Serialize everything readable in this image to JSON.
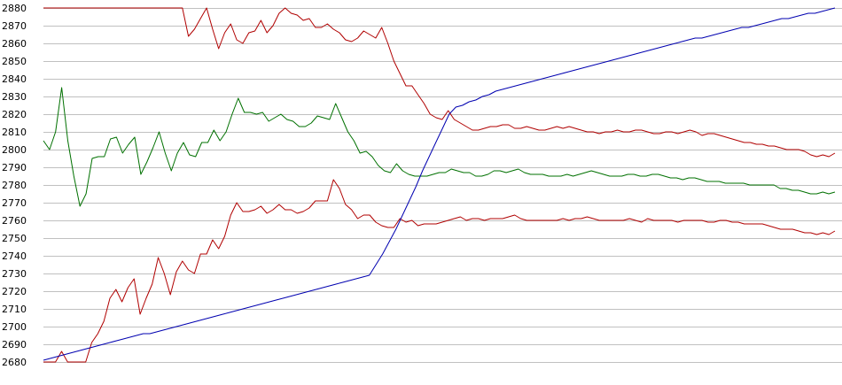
{
  "chart_data": {
    "type": "line",
    "title": "",
    "xlabel": "",
    "ylabel": "",
    "ylim": [
      2680,
      2880
    ],
    "y_ticks": [
      2680,
      2690,
      2700,
      2710,
      2720,
      2730,
      2740,
      2750,
      2760,
      2770,
      2780,
      2790,
      2800,
      2810,
      2820,
      2830,
      2840,
      2850,
      2860,
      2870,
      2880
    ],
    "grid": true,
    "legend": "none",
    "colors": {
      "grid": "#c0c0c0",
      "upper_band": "#b00000",
      "average": "#007000",
      "lower_band": "#b00000",
      "rising": "#0000b0"
    },
    "series": [
      {
        "key": "upper_band",
        "values": [
          2880,
          2880,
          2880,
          2880,
          2880,
          2880,
          2880,
          2880,
          2880,
          2880,
          2880,
          2880,
          2880,
          2880,
          2880,
          2880,
          2880,
          2880,
          2880,
          2880,
          2880,
          2880,
          2880,
          2880,
          2864,
          2868,
          2874,
          2880,
          2868,
          2857,
          2866,
          2871,
          2862,
          2860,
          2866,
          2867,
          2873,
          2866,
          2870,
          2877,
          2880,
          2877,
          2876,
          2873,
          2874,
          2869,
          2869,
          2871,
          2868,
          2866,
          2862,
          2861,
          2863,
          2867,
          2865,
          2863,
          2869,
          2860,
          2850,
          2843,
          2836,
          2836,
          2831,
          2826,
          2820,
          2818,
          2817,
          2822,
          2817,
          2815,
          2813,
          2811,
          2811,
          2812,
          2813,
          2813,
          2814,
          2814,
          2812,
          2812,
          2813,
          2812,
          2811,
          2811,
          2812,
          2813,
          2812,
          2813,
          2812,
          2811,
          2810,
          2810,
          2809,
          2810,
          2810,
          2811,
          2810,
          2810,
          2811,
          2811,
          2810,
          2809,
          2809,
          2810,
          2810,
          2809,
          2810,
          2811,
          2810,
          2808,
          2809,
          2809,
          2808,
          2807,
          2806,
          2805,
          2804,
          2804,
          2803,
          2803,
          2802,
          2802,
          2801,
          2800,
          2800,
          2800,
          2799,
          2797,
          2796,
          2797,
          2796,
          2798
        ]
      },
      {
        "key": "average",
        "values": [
          2805,
          2800,
          2810,
          2835,
          2805,
          2785,
          2768,
          2775,
          2795,
          2796,
          2796,
          2806,
          2807,
          2798,
          2803,
          2807,
          2786,
          2793,
          2801,
          2810,
          2798,
          2788,
          2798,
          2804,
          2797,
          2796,
          2804,
          2804,
          2811,
          2805,
          2810,
          2820,
          2829,
          2821,
          2821,
          2820,
          2821,
          2816,
          2818,
          2820,
          2817,
          2816,
          2813,
          2813,
          2815,
          2819,
          2818,
          2817,
          2826,
          2818,
          2810,
          2805,
          2798,
          2799,
          2796,
          2791,
          2788,
          2787,
          2792,
          2788,
          2786,
          2785,
          2785,
          2785,
          2786,
          2787,
          2787,
          2789,
          2788,
          2787,
          2787,
          2785,
          2785,
          2786,
          2788,
          2788,
          2787,
          2788,
          2789,
          2787,
          2786,
          2786,
          2786,
          2785,
          2785,
          2785,
          2786,
          2785,
          2786,
          2787,
          2788,
          2787,
          2786,
          2785,
          2785,
          2785,
          2786,
          2786,
          2785,
          2785,
          2786,
          2786,
          2785,
          2784,
          2784,
          2783,
          2784,
          2784,
          2783,
          2782,
          2782,
          2782,
          2781,
          2781,
          2781,
          2781,
          2780,
          2780,
          2780,
          2780,
          2780,
          2778,
          2778,
          2777,
          2777,
          2776,
          2775,
          2775,
          2776,
          2775,
          2776
        ]
      },
      {
        "key": "lower_band",
        "values": [
          2680,
          2680,
          2680,
          2686,
          2680,
          2680,
          2680,
          2680,
          2691,
          2696,
          2703,
          2716,
          2721,
          2714,
          2722,
          2727,
          2707,
          2716,
          2724,
          2739,
          2730,
          2718,
          2731,
          2737,
          2732,
          2730,
          2741,
          2741,
          2749,
          2744,
          2751,
          2763,
          2770,
          2765,
          2765,
          2766,
          2768,
          2764,
          2766,
          2769,
          2766,
          2766,
          2764,
          2765,
          2767,
          2771,
          2771,
          2771,
          2783,
          2778,
          2769,
          2766,
          2761,
          2763,
          2763,
          2759,
          2757,
          2756,
          2756,
          2761,
          2759,
          2760,
          2757,
          2758,
          2758,
          2758,
          2759,
          2760,
          2761,
          2762,
          2760,
          2761,
          2761,
          2760,
          2761,
          2761,
          2761,
          2762,
          2763,
          2761,
          2760,
          2760,
          2760,
          2760,
          2760,
          2760,
          2761,
          2760,
          2761,
          2761,
          2762,
          2761,
          2760,
          2760,
          2760,
          2760,
          2760,
          2761,
          2760,
          2759,
          2761,
          2760,
          2760,
          2760,
          2760,
          2759,
          2760,
          2760,
          2760,
          2760,
          2759,
          2759,
          2760,
          2760,
          2759,
          2759,
          2758,
          2758,
          2758,
          2758,
          2757,
          2756,
          2755,
          2755,
          2755,
          2754,
          2753,
          2753,
          2752,
          2753,
          2752,
          2754
        ]
      },
      {
        "key": "rising",
        "values": [
          2681,
          2682,
          2683,
          2684,
          2685,
          2686,
          2687,
          2688,
          2689,
          2690,
          2691,
          2692,
          2693,
          2694,
          2695,
          2696,
          2696,
          2697,
          2698,
          2699,
          2700,
          2701,
          2702,
          2703,
          2704,
          2705,
          2706,
          2707,
          2708,
          2709,
          2710,
          2711,
          2712,
          2713,
          2714,
          2715,
          2716,
          2717,
          2718,
          2719,
          2720,
          2721,
          2722,
          2723,
          2724,
          2725,
          2726,
          2727,
          2728,
          2729,
          2735,
          2741,
          2748,
          2755,
          2763,
          2771,
          2779,
          2788,
          2796,
          2804,
          2812,
          2820,
          2824,
          2825,
          2827,
          2828,
          2830,
          2831,
          2833,
          2834,
          2835,
          2836,
          2837,
          2838,
          2839,
          2840,
          2841,
          2842,
          2843,
          2844,
          2845,
          2846,
          2847,
          2848,
          2849,
          2850,
          2851,
          2852,
          2853,
          2854,
          2855,
          2856,
          2857,
          2858,
          2859,
          2860,
          2861,
          2862,
          2863,
          2863,
          2864,
          2865,
          2866,
          2867,
          2868,
          2869,
          2869,
          2870,
          2871,
          2872,
          2873,
          2874,
          2874,
          2875,
          2876,
          2877,
          2877,
          2878,
          2879,
          2880
        ]
      }
    ]
  }
}
